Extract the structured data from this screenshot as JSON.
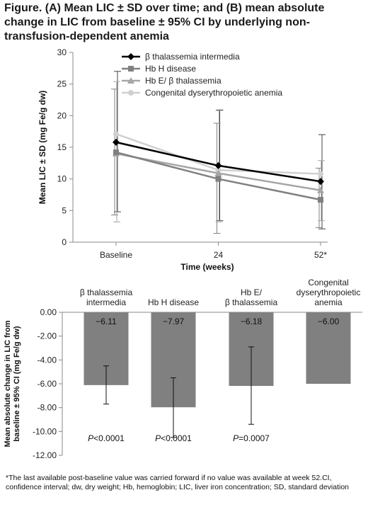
{
  "figure": {
    "title": "Figure. (A) Mean LIC ± SD over time; and (B) mean absolute change in LIC from baseline ± 95% CI by underlying non-transfusion-dependent anemia",
    "footnote": "*The last available post-baseline value was carried forward if no value was available at week 52.CI, confidence interval; dw, dry weight; Hb, hemoglobin; LIC, liver iron concentration; SD, standard deviation"
  },
  "chart_data": [
    {
      "type": "line",
      "title": "",
      "xlabel": "Time (weeks)",
      "ylabel": "Mean LIC ± SD (mg Fe/g dw)",
      "categories": [
        "Baseline",
        "24",
        "52*"
      ],
      "ylim": [
        0,
        30
      ],
      "yticks": [
        "0",
        "5",
        "10",
        "15",
        "20",
        "25",
        "30"
      ],
      "legend_position": "top-right",
      "grid": false,
      "series": [
        {
          "name": "β thalassemia intermedia",
          "values": [
            15.8,
            12.1,
            9.6
          ],
          "err_low": [
            4.8,
            3.4,
            2.1
          ],
          "err_high": [
            27.0,
            20.9,
            17.0
          ],
          "color": "#000000",
          "marker": "diamond"
        },
        {
          "name": "Hb H disease",
          "values": [
            14.2,
            10.0,
            6.7
          ],
          "err_low": [
            4.3,
            1.4,
            2.3
          ],
          "err_high": [
            24.2,
            18.8,
            11.7
          ],
          "color": "#808080",
          "marker": "square"
        },
        {
          "name": "Hb E/ β thalassemia",
          "values": [
            14.0,
            10.9,
            8.2
          ],
          "err_low": [
            3.2,
            3.2,
            3.4
          ],
          "err_high": [
            25.4,
            20.8,
            12.9
          ],
          "color": "#a6a6a6",
          "marker": "triangle"
        },
        {
          "name": "Congenital dyserythropoietic anemia",
          "values": [
            17.1,
            11.4,
            10.8
          ],
          "err_low": [
            null,
            null,
            null
          ],
          "err_high": [
            null,
            null,
            null
          ],
          "color": "#d0d0d0",
          "marker": "circle"
        }
      ]
    },
    {
      "type": "bar",
      "title": "",
      "xlabel": "",
      "ylabel": "Mean absolute change in LIC from baseline ± 95% CI (mg Fe/g dw)",
      "categories": [
        [
          "β thalassemia",
          "intermedia"
        ],
        [
          "Hb H disease"
        ],
        [
          "Hb E/",
          "β thalassemia"
        ],
        [
          "Congenital",
          "dyserythropoietic",
          "anemia"
        ]
      ],
      "values": [
        -6.11,
        -7.97,
        -6.18,
        -6.0
      ],
      "value_labels": [
        "−6.11",
        "−7.97",
        "−6.18",
        "−6.00"
      ],
      "ci_low": [
        -7.7,
        -10.5,
        -9.4,
        null
      ],
      "ci_high": [
        -4.5,
        -5.5,
        -2.9,
        null
      ],
      "p_values": [
        {
          "p": "P",
          "rest": "<0.0001"
        },
        {
          "p": "P",
          "rest": "<0.0001"
        },
        {
          "p": "P",
          "rest": "=0.0007"
        },
        null
      ],
      "ylim": [
        -12,
        0
      ],
      "yticks": [
        "0.00",
        "-2.00",
        "-4.00",
        "-6.00",
        "-8.00",
        "-10.00",
        "-12.00"
      ],
      "bar_color": "#808080",
      "grid": false
    }
  ]
}
